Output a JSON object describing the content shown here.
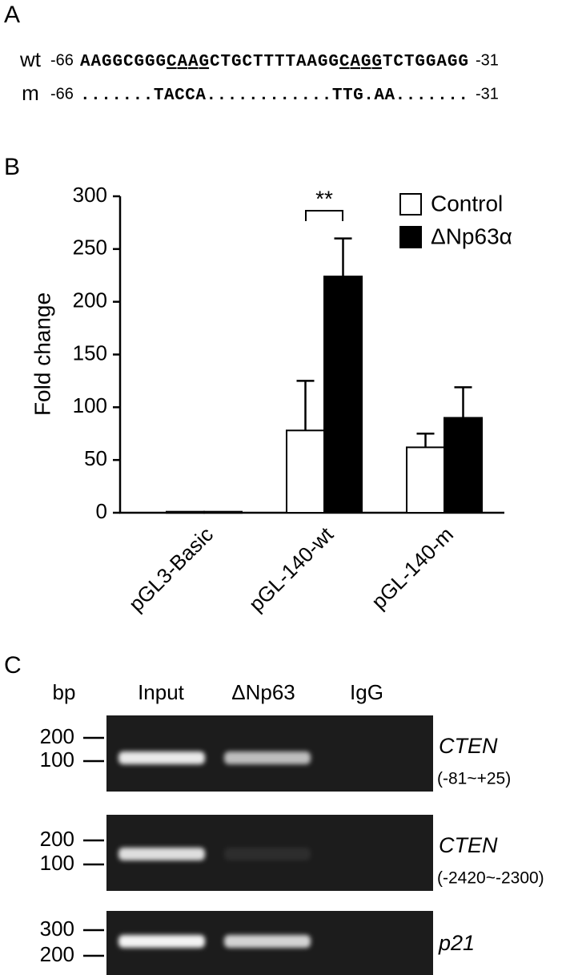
{
  "panel_a": {
    "label": "A",
    "rows": [
      {
        "name": "wt",
        "start": "-66",
        "sequence": [
          "AAGGCGGG",
          "CAAG",
          "CTGCTTTTAAGG",
          "CAGG",
          "TCTGGAGG"
        ],
        "end": "-31"
      },
      {
        "name": "m",
        "start": "-66",
        "sequence": [
          ".......TACCA............TTG.AA......."
        ],
        "end": "-31"
      }
    ]
  },
  "chart_data": {
    "type": "bar",
    "label": "B",
    "ylabel": "Fold change",
    "annotation": "**",
    "categories": [
      "pGL3-Basic",
      "pGL-140-wt",
      "pGL-140-m"
    ],
    "series": [
      {
        "name": "Control",
        "color": "#ffffff",
        "values": [
          1,
          78,
          62
        ],
        "errors": [
          null,
          47,
          13
        ]
      },
      {
        "name": "ΔNp63α",
        "color": "#000000",
        "values": [
          1,
          224,
          90
        ],
        "errors": [
          null,
          36,
          29
        ]
      }
    ],
    "ylim": [
      0,
      300
    ],
    "yticks": [
      0,
      50,
      100,
      150,
      200,
      250,
      300
    ],
    "grid": false,
    "legend": "upper right"
  },
  "panel_c": {
    "label": "C",
    "size_unit": "bp",
    "lanes": [
      "Input",
      "ΔNp63",
      "IgG"
    ],
    "gels": [
      {
        "markers": [
          "200",
          "100"
        ],
        "gene": "CTEN",
        "region": "(-81~+25)"
      },
      {
        "markers": [
          "200",
          "100"
        ],
        "gene": "CTEN",
        "region": "(-2420~-2300)"
      },
      {
        "markers": [
          "300",
          "200"
        ],
        "gene": "p21"
      }
    ]
  }
}
